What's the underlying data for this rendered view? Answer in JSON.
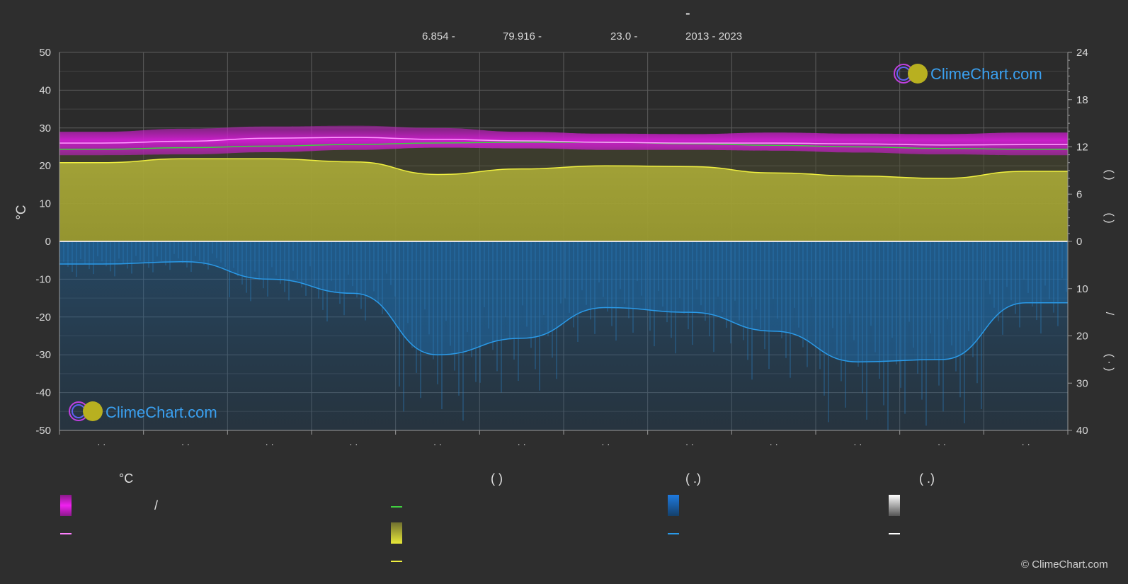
{
  "header": {
    "title": "-",
    "lat": "6.854 -",
    "lon": "79.916 -",
    "elev": "23.0 -",
    "years": "2013 - 2023"
  },
  "axes": {
    "left_unit": "°C",
    "left_ticks": [
      "50",
      "40",
      "30",
      "20",
      "10",
      "0",
      "-10",
      "-20",
      "-30",
      "-40",
      "-50"
    ],
    "right_top_ticks": [
      "24",
      "18",
      "12",
      "6",
      "0"
    ],
    "right_bottom_ticks": [
      "10",
      "20",
      "30",
      "40"
    ],
    "right_label_a": "(   )",
    "right_label_b": "(   )",
    "right_label_c": "/",
    "right_label_d": "(  ·  )",
    "month_labels": [
      "· ·",
      "· ·",
      "· ·",
      "· ·",
      "· ·",
      "· ·",
      "· ·",
      "· ·",
      "· ·",
      "· ·",
      "· ·",
      "· ·"
    ]
  },
  "legend": {
    "col1_head": "°C",
    "col1_slash": "/",
    "col2_head": "(           )",
    "col3_head": "(   .)",
    "col4_head": "(   .)"
  },
  "watermark": "ClimeChart.com",
  "copyright": "© ClimeChart.com",
  "colors": {
    "bg": "#2e2e2e",
    "temp_range": "#d21ed2",
    "temp_mean": "#ff80ff",
    "daylight": "#40d040",
    "sunshine_fill": "#b8b830",
    "sunshine_line": "#f0f040",
    "precip_fill": "#1e6aa8",
    "precip_line": "#2a9ae8",
    "snow": "#ffffff",
    "brand": "#3aa0f0"
  },
  "chart_data": {
    "type": "line",
    "x_months": 12,
    "ylim_left": [
      -50,
      50
    ],
    "ylim_right_hours": [
      0,
      24
    ],
    "ylim_right_precip_mm": [
      0,
      40
    ],
    "grid": true,
    "series": [
      {
        "key": "temp_max",
        "values": [
          29.0,
          29.8,
          30.4,
          30.6,
          30.0,
          29.0,
          28.5,
          28.4,
          28.8,
          28.5,
          28.4,
          28.8
        ]
      },
      {
        "key": "temp_min",
        "values": [
          22.8,
          23.0,
          23.6,
          24.2,
          24.8,
          24.6,
          24.2,
          24.2,
          24.0,
          23.5,
          23.0,
          22.8
        ]
      },
      {
        "key": "temp_mean",
        "values": [
          26.0,
          26.5,
          27.3,
          27.5,
          27.0,
          26.6,
          26.2,
          26.0,
          26.0,
          25.8,
          25.5,
          25.6
        ]
      },
      {
        "key": "daylight_h",
        "values": [
          11.7,
          11.9,
          12.1,
          12.3,
          12.5,
          12.6,
          12.6,
          12.4,
          12.2,
          12.0,
          11.8,
          11.7
        ]
      },
      {
        "key": "sunshine_h",
        "values": [
          10.0,
          10.5,
          10.5,
          10.1,
          8.5,
          9.2,
          9.6,
          9.5,
          8.7,
          8.3,
          8.0,
          8.9
        ]
      },
      {
        "key": "precip_mm",
        "values": [
          4.8,
          4.3,
          8.0,
          11.0,
          24.0,
          20.5,
          14.0,
          15.0,
          19.0,
          25.5,
          25.0,
          13.0
        ]
      }
    ]
  }
}
